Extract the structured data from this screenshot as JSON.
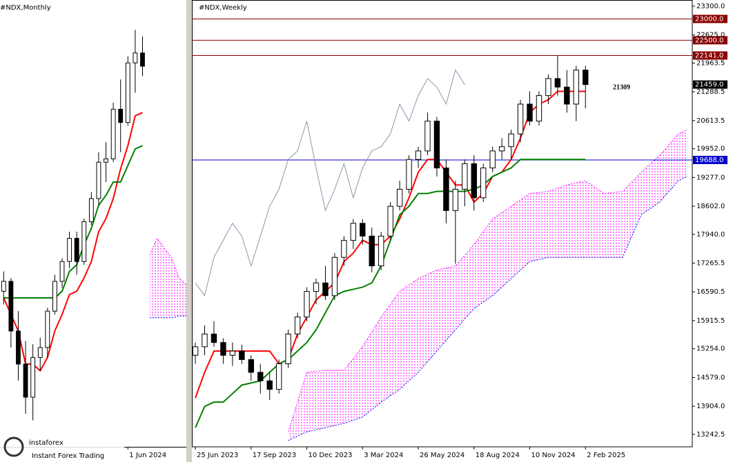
{
  "chart_data": [
    {
      "type": "candlestick",
      "title": "#NDX,Monthly",
      "xlim": [
        -0.5,
        25
      ],
      "ylim": [
        9500,
        23000
      ],
      "xticks": [
        {
          "value": 17,
          "label": "1 Jun 2024"
        }
      ],
      "up_color": "#ffffff",
      "down_color": "#000000",
      "x": [
        0,
        1,
        2,
        3,
        4,
        5,
        6,
        7,
        8,
        9,
        10,
        11,
        12,
        13,
        14,
        15,
        16,
        17,
        18,
        19
      ],
      "open": [
        14200,
        14500,
        13000,
        12000,
        11000,
        12200,
        12500,
        13600,
        14500,
        15100,
        15800,
        15100,
        16300,
        17000,
        18100,
        18200,
        19700,
        19300,
        21100,
        21400
      ],
      "high": [
        14800,
        14600,
        13600,
        12700,
        12600,
        12800,
        13700,
        14700,
        15200,
        16000,
        16000,
        16400,
        17200,
        18400,
        18700,
        19900,
        20600,
        21300,
        22100,
        21900
      ],
      "low": [
        13800,
        12500,
        11500,
        10500,
        10300,
        11800,
        12200,
        13500,
        14300,
        14900,
        14700,
        15000,
        16200,
        16800,
        17500,
        18100,
        18400,
        19200,
        20200,
        20700
      ],
      "close": [
        14500,
        13000,
        12000,
        11000,
        12200,
        12500,
        13600,
        14500,
        15100,
        15800,
        15100,
        16300,
        17000,
        18100,
        18200,
        19700,
        19300,
        21100,
        21400,
        21000
      ],
      "lines": [
        {
          "color": "#ff0000",
          "x": [
            0,
            1,
            2,
            3,
            4,
            5,
            6,
            7,
            8,
            9,
            10,
            11,
            12,
            13,
            14,
            15,
            16,
            17,
            18,
            19
          ],
          "values": [
            14000,
            13500,
            13000,
            12000,
            12000,
            11800,
            12200,
            13000,
            13500,
            14100,
            14200,
            14600,
            15100,
            16000,
            16400,
            17000,
            17900,
            18600,
            19500,
            19600
          ]
        },
        {
          "color": "#008000",
          "x": [
            0,
            1,
            2,
            3,
            4,
            5,
            6,
            7,
            8,
            9,
            10,
            11,
            12,
            13,
            14,
            15,
            16,
            17,
            18,
            19
          ],
          "values": [
            14000,
            14000,
            14000,
            14000,
            14000,
            14000,
            14000,
            14000,
            14200,
            14800,
            15000,
            15600,
            16100,
            16800,
            17100,
            17500,
            17500,
            18000,
            18500,
            18600
          ]
        }
      ],
      "cloud": {
        "color": "#ff00ff",
        "x": [
          20,
          21,
          22,
          23,
          24,
          25
        ],
        "upper": [
          15300,
          15800,
          15500,
          15200,
          14600,
          14400
        ],
        "lower": [
          13400,
          13400,
          13400,
          13400,
          13450,
          13450
        ]
      }
    },
    {
      "type": "candlestick",
      "title": "#NDX,Weekly",
      "xlim": [
        -0.75,
        107
      ],
      "ylim": [
        12950,
        23445
      ],
      "xticks": [
        {
          "value": 0,
          "label": "25 Jun 2023"
        },
        {
          "value": 12,
          "label": "17 Sep 2023"
        },
        {
          "value": 24,
          "label": "10 Dec 2023"
        },
        {
          "value": 36,
          "label": "3 Mar 2024"
        },
        {
          "value": 48,
          "label": "26 May 2024"
        },
        {
          "value": 60,
          "label": "18 Aug 2024"
        },
        {
          "value": 72,
          "label": "10 Nov 2024"
        },
        {
          "value": 84,
          "label": "2 Feb 2025"
        }
      ],
      "yticks": [
        {
          "value": 23300,
          "label": "23300.0"
        },
        {
          "value": 22625,
          "label": "22625.0"
        },
        {
          "value": 21963.5,
          "label": "21963.5"
        },
        {
          "value": 21288.5,
          "label": "21288.5"
        },
        {
          "value": 20613.5,
          "label": "20613.5"
        },
        {
          "value": 19952,
          "label": "19952.0"
        },
        {
          "value": 19277,
          "label": "19277.0"
        },
        {
          "value": 18602,
          "label": "18602.0"
        },
        {
          "value": 17940,
          "label": "17940.0"
        },
        {
          "value": 17265.5,
          "label": "17265.5"
        },
        {
          "value": 16590.5,
          "label": "16590.5"
        },
        {
          "value": 15915.5,
          "label": "15915.5"
        },
        {
          "value": 15254,
          "label": "15254.0"
        },
        {
          "value": 14579,
          "label": "14579.0"
        },
        {
          "value": 13904,
          "label": "13904.0"
        },
        {
          "value": 13242.5,
          "label": "13242.5"
        }
      ],
      "up_color": "#ffffff",
      "down_color": "#000000",
      "levels": [
        {
          "value": 23000,
          "label": "23000.0",
          "color": "#8b0000"
        },
        {
          "value": 22500,
          "label": "22500.0",
          "color": "#8b0000"
        },
        {
          "value": 22141,
          "label": "22141.0",
          "color": "#8b0000"
        },
        {
          "value": 19688,
          "label": "19688.0",
          "color": "#0000cd"
        }
      ],
      "price": {
        "value": 21459,
        "label": "21459.0",
        "color": "#000000"
      },
      "annotation": 21309,
      "x": [
        0,
        2,
        4,
        6,
        8,
        10,
        12,
        14,
        16,
        18,
        20,
        22,
        24,
        26,
        28,
        30,
        32,
        34,
        36,
        38,
        40,
        42,
        44,
        46,
        48,
        50,
        52,
        54,
        56,
        58,
        60,
        62,
        64,
        66,
        68,
        70,
        72,
        74,
        76,
        78,
        80,
        82,
        84
      ],
      "open": [
        15100,
        15300,
        15600,
        15400,
        15100,
        15200,
        15000,
        14700,
        14500,
        14300,
        14900,
        15600,
        16000,
        16600,
        16800,
        16500,
        17400,
        17800,
        18200,
        17900,
        17200,
        17900,
        18600,
        19000,
        19700,
        19900,
        20600,
        19500,
        18500,
        19000,
        19600,
        18800,
        19500,
        19900,
        20000,
        20300,
        21000,
        20600,
        21200,
        21600,
        21400,
        21000,
        21800
      ],
      "high": [
        15400,
        15800,
        15900,
        15500,
        15400,
        15350,
        15100,
        14900,
        14700,
        15000,
        15700,
        16100,
        16700,
        16900,
        17200,
        17500,
        17900,
        18300,
        18300,
        18100,
        18000,
        18700,
        19200,
        19800,
        20000,
        20800,
        20700,
        19700,
        19200,
        19700,
        19800,
        19600,
        20000,
        20200,
        20400,
        21100,
        21300,
        21300,
        21700,
        22141,
        21800,
        21900,
        21900
      ],
      "low": [
        14900,
        15100,
        15300,
        14900,
        14850,
        14900,
        14500,
        14200,
        14050,
        14200,
        14800,
        15500,
        15900,
        16300,
        16400,
        16400,
        17200,
        17600,
        17700,
        17050,
        17100,
        17800,
        18500,
        18900,
        19500,
        19800,
        19300,
        18200,
        17250,
        18600,
        18500,
        18700,
        19400,
        19700,
        19700,
        20100,
        20500,
        20500,
        21000,
        21200,
        20800,
        20600,
        20900
      ],
      "close": [
        15300,
        15600,
        15400,
        15100,
        15200,
        15000,
        14700,
        14500,
        14300,
        14900,
        15600,
        16000,
        16600,
        16800,
        16500,
        17400,
        17800,
        18200,
        17900,
        17200,
        17900,
        18600,
        19000,
        19700,
        19900,
        20600,
        19500,
        18500,
        19000,
        19600,
        18800,
        19500,
        19900,
        20000,
        20300,
        21000,
        20600,
        21200,
        21600,
        21400,
        21000,
        21800,
        21459
      ],
      "lines": [
        {
          "color": "#ff0000",
          "x": [
            0,
            2,
            4,
            6,
            8,
            10,
            12,
            14,
            16,
            18,
            20,
            22,
            24,
            26,
            28,
            30,
            32,
            34,
            36,
            38,
            40,
            42,
            44,
            46,
            48,
            50,
            52,
            54,
            56,
            58,
            60,
            62,
            64,
            66,
            68,
            70,
            72,
            74,
            76,
            78,
            80,
            82,
            84
          ],
          "values": [
            14100,
            14700,
            15200,
            15200,
            15200,
            15200,
            15200,
            15200,
            15200,
            14900,
            15000,
            15600,
            16000,
            16400,
            16600,
            16800,
            17300,
            17500,
            17800,
            17700,
            17700,
            17900,
            18300,
            18800,
            19400,
            19700,
            19700,
            19400,
            19100,
            19100,
            18700,
            18900,
            19300,
            19400,
            19700,
            20200,
            20800,
            21000,
            21100,
            21300,
            21300,
            21300,
            21300
          ]
        },
        {
          "color": "#008000",
          "x": [
            0,
            2,
            4,
            6,
            8,
            10,
            12,
            14,
            16,
            18,
            20,
            22,
            24,
            26,
            28,
            30,
            32,
            34,
            36,
            38,
            40,
            42,
            44,
            46,
            48,
            50,
            52,
            54,
            56,
            58,
            60,
            62,
            64,
            66,
            68,
            70,
            72,
            74,
            76,
            78,
            80,
            82,
            84
          ],
          "values": [
            13400,
            13900,
            14000,
            14000,
            14200,
            14400,
            14450,
            14500,
            14700,
            14900,
            15000,
            15200,
            15400,
            15700,
            16100,
            16500,
            16600,
            16650,
            16700,
            16800,
            17200,
            17800,
            18400,
            18600,
            18900,
            18900,
            18950,
            18950,
            18950,
            18950,
            19000,
            19100,
            19300,
            19400,
            19500,
            19700,
            19700,
            19700,
            19700,
            19700,
            19700,
            19700,
            19700
          ]
        },
        {
          "color": "#8a96a8",
          "x": [
            0,
            2,
            4,
            6,
            8,
            10,
            12,
            14,
            16,
            18,
            20,
            22,
            24,
            26,
            28,
            30,
            32,
            34,
            36,
            38,
            40,
            42,
            44,
            46,
            48,
            50,
            52,
            54,
            56,
            58
          ],
          "values": [
            16800,
            16500,
            17400,
            17800,
            18200,
            17900,
            17200,
            17900,
            18600,
            19000,
            19700,
            19900,
            20600,
            19500,
            18500,
            19000,
            19600,
            18800,
            19500,
            19900,
            20000,
            20300,
            21000,
            20600,
            21200,
            21600,
            21400,
            21000,
            21800,
            21459
          ]
        }
      ],
      "cloud": {
        "color": "#ff00ff",
        "x": [
          20,
          24,
          28,
          32,
          36,
          40,
          44,
          48,
          52,
          56,
          60,
          64,
          68,
          72,
          76,
          80,
          84,
          88,
          92,
          96,
          100,
          104,
          106
        ],
        "upper": [
          13300,
          14700,
          14750,
          14750,
          15300,
          16000,
          16600,
          16900,
          17100,
          17200,
          17700,
          18300,
          18600,
          18900,
          18950,
          19100,
          19200,
          18900,
          18950,
          19400,
          19800,
          20300,
          20400
        ],
        "lower": [
          13100,
          13300,
          13400,
          13500,
          13650,
          14000,
          14300,
          14700,
          15200,
          15700,
          16200,
          16500,
          16900,
          17300,
          17400,
          17400,
          17400,
          17400,
          17400,
          18400,
          18700,
          19200,
          19300
        ]
      }
    }
  ],
  "watermark": {
    "brand": "instaforex",
    "tagline": "Instant Forex Trading"
  }
}
